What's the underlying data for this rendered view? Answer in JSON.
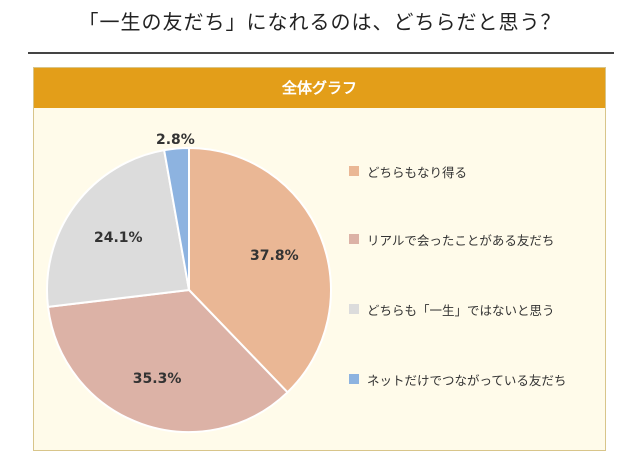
{
  "page": {
    "title": "「一生の友だち」になれるのは、どちらだと思う？"
  },
  "chart_data": {
    "type": "pie",
    "title": "全体グラフ",
    "slices": [
      {
        "label": "どちらもなり得る",
        "value": 37.8,
        "display": "37.8%",
        "color": "#eab795"
      },
      {
        "label": "リアルで会ったことがある友だち",
        "value": 35.3,
        "display": "35.3%",
        "color": "#dcb2a6"
      },
      {
        "label": "どちらも「一生」ではないと思う",
        "value": 24.1,
        "display": "24.1%",
        "color": "#dcdcdc"
      },
      {
        "label": "ネットだけでつながっている友だち",
        "value": 2.8,
        "display": "2.8%",
        "color": "#8db3e0"
      }
    ],
    "legend_position": "right",
    "start_angle": "12 o'clock",
    "direction": "clockwise"
  }
}
